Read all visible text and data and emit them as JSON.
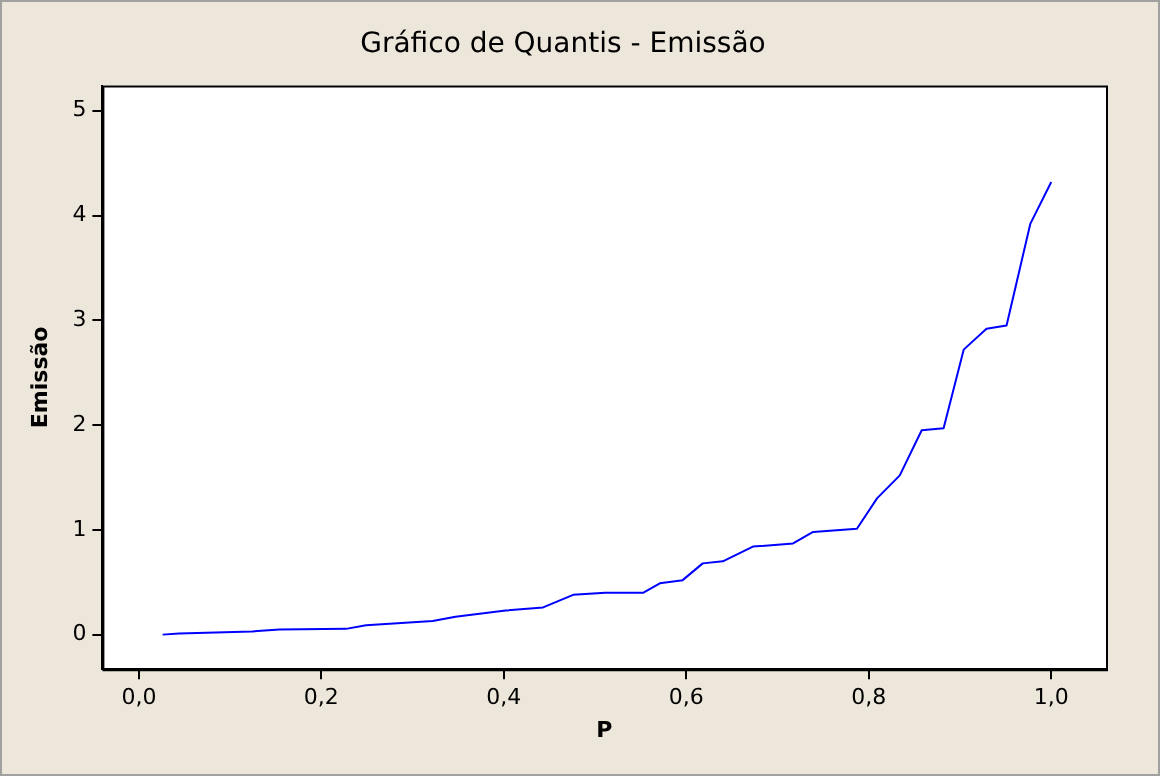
{
  "chart_data": {
    "type": "line",
    "title": "Gráfico de Quantis - Emissão",
    "xlabel": "P",
    "ylabel": "Emissão",
    "x": [
      0.026,
      0.044,
      0.124,
      0.154,
      0.227,
      0.249,
      0.322,
      0.347,
      0.402,
      0.443,
      0.476,
      0.511,
      0.553,
      0.571,
      0.596,
      0.618,
      0.64,
      0.673,
      0.717,
      0.739,
      0.787,
      0.809,
      0.834,
      0.858,
      0.882,
      0.904,
      0.929,
      0.951,
      0.977,
      1.0
    ],
    "series": [
      {
        "color": "#0000ff",
        "values": [
          0,
          0.01,
          0.03,
          0.05,
          0.055,
          0.09,
          0.13,
          0.17,
          0.23,
          0.26,
          0.38,
          0.4,
          0.4,
          0.49,
          0.52,
          0.68,
          0.7,
          0.84,
          0.87,
          0.98,
          1.01,
          1.3,
          1.52,
          1.95,
          1.97,
          2.72,
          2.92,
          2.95,
          3.92,
          4.32
        ]
      }
    ],
    "xlim": [
      -0.04,
      1.06
    ],
    "ylim": [
      -0.33,
      5.24
    ],
    "xticks": [
      {
        "value": 0,
        "label": "0,0"
      },
      {
        "value": 0.2,
        "label": "0,2"
      },
      {
        "value": 0.4,
        "label": "0,4"
      },
      {
        "value": 0.6,
        "label": "0,6"
      },
      {
        "value": 0.8,
        "label": "0,8"
      },
      {
        "value": 1,
        "label": "1,0"
      }
    ],
    "yticks": [
      0,
      1,
      2,
      3,
      4,
      5
    ],
    "grid": false,
    "legend": false,
    "marker": "none",
    "line_style": "solid"
  }
}
